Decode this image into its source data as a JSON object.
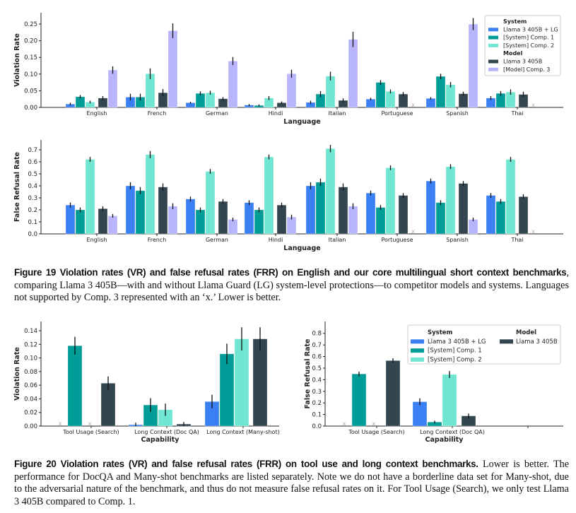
{
  "colors": {
    "llama_lg": "#3b80f3",
    "comp1": "#009c97",
    "comp2": "#70e6d2",
    "llama": "#33454f",
    "comp3": "#b9b5fc",
    "error_bar": "#111111",
    "missing_marker": "#aaaaaa"
  },
  "chart_data": [
    {
      "type": "bar",
      "id": "vr-language",
      "xlabel": "Language",
      "ylabel": "Violation Rate",
      "categories": [
        "English",
        "French",
        "German",
        "Hindi",
        "Italian",
        "Portuguese",
        "Spanish",
        "Thai"
      ],
      "ylim": [
        0,
        0.284
      ],
      "yticks": [
        "0.00",
        "0.05",
        "0.10",
        "0.15",
        "0.20",
        "0.25"
      ],
      "missing_marker": "x",
      "grid": false,
      "legend_position": "top-right",
      "legend": [
        {
          "header": "System"
        },
        {
          "series": 0
        },
        {
          "series": 1
        },
        {
          "series": 2
        },
        {
          "header": "Model"
        },
        {
          "series": 3
        },
        {
          "series": 4
        }
      ],
      "series": [
        {
          "name": "Llama 3 405B + LG",
          "color_key": "llama_lg",
          "values": [
            0.01,
            0.031,
            0.014,
            0.007,
            0.015,
            0.025,
            0.027,
            0.028
          ],
          "err": [
            0.004,
            0.01,
            0.003,
            0.003,
            0.005,
            0.004,
            0.004,
            0.006
          ]
        },
        {
          "name": "[System] Comp. 1",
          "color_key": "comp1",
          "values": [
            0.032,
            0.031,
            0.042,
            0.006,
            0.04,
            0.075,
            0.093,
            0.042
          ],
          "err": [
            0.005,
            0.01,
            0.006,
            0.003,
            0.009,
            0.007,
            0.008,
            0.007
          ]
        },
        {
          "name": "[System] Comp. 2",
          "color_key": "comp2",
          "values": [
            0.016,
            0.101,
            0.044,
            0.028,
            0.094,
            0.048,
            0.068,
            0.046
          ],
          "err": [
            0.004,
            0.016,
            0.006,
            0.006,
            0.013,
            0.006,
            0.008,
            0.008
          ]
        },
        {
          "name": "Llama 3 405B",
          "color_key": "llama",
          "values": [
            0.028,
            0.044,
            0.026,
            0.014,
            0.021,
            0.04,
            0.041,
            0.039
          ],
          "err": [
            0.006,
            0.011,
            0.005,
            0.004,
            0.006,
            0.006,
            0.006,
            0.008
          ]
        },
        {
          "name": "[Model] Comp. 3",
          "color_key": "comp3",
          "values": [
            0.112,
            0.23,
            0.139,
            0.101,
            0.204,
            "x",
            0.25,
            "x"
          ],
          "err": [
            0.011,
            0.022,
            0.012,
            0.012,
            0.023,
            null,
            0.018,
            null
          ]
        }
      ]
    },
    {
      "type": "bar",
      "id": "frr-language",
      "xlabel": "Language",
      "ylabel": "False Refusal Rate",
      "categories": [
        "English",
        "French",
        "German",
        "Hindi",
        "Italian",
        "Portuguese",
        "Spanish",
        "Thai"
      ],
      "ylim": [
        0,
        0.782
      ],
      "yticks": [
        "0.0",
        "0.1",
        "0.2",
        "0.3",
        "0.4",
        "0.5",
        "0.6",
        "0.7"
      ],
      "missing_marker": "x",
      "grid": false,
      "series": [
        {
          "name": "Llama 3 405B + LG",
          "color_key": "llama_lg",
          "values": [
            0.24,
            0.4,
            0.29,
            0.26,
            0.4,
            0.34,
            0.44,
            0.32
          ],
          "err": [
            0.02,
            0.03,
            0.02,
            0.02,
            0.03,
            0.02,
            0.02,
            0.02
          ]
        },
        {
          "name": "[System] Comp. 1",
          "color_key": "comp1",
          "values": [
            0.2,
            0.36,
            0.2,
            0.2,
            0.43,
            0.22,
            0.26,
            0.27
          ],
          "err": [
            0.02,
            0.03,
            0.02,
            0.02,
            0.03,
            0.02,
            0.02,
            0.02
          ]
        },
        {
          "name": "[System] Comp. 2",
          "color_key": "comp2",
          "values": [
            0.62,
            0.66,
            0.52,
            0.64,
            0.71,
            0.55,
            0.56,
            0.62
          ],
          "err": [
            0.02,
            0.03,
            0.02,
            0.02,
            0.03,
            0.02,
            0.02,
            0.02
          ]
        },
        {
          "name": "Llama 3 405B",
          "color_key": "llama",
          "values": [
            0.21,
            0.39,
            0.27,
            0.24,
            0.39,
            0.32,
            0.42,
            0.31
          ],
          "err": [
            0.02,
            0.03,
            0.02,
            0.02,
            0.03,
            0.02,
            0.02,
            0.02
          ]
        },
        {
          "name": "[Model] Comp. 3",
          "color_key": "comp3",
          "values": [
            0.15,
            0.23,
            0.12,
            0.14,
            0.23,
            "x",
            0.12,
            "x"
          ],
          "err": [
            0.015,
            0.025,
            0.015,
            0.02,
            0.025,
            null,
            0.015,
            null
          ]
        }
      ]
    },
    {
      "type": "bar",
      "id": "vr-capability",
      "xlabel": "Capability",
      "ylabel": "Violation Rate",
      "categories": [
        "Tool Usage (Search)",
        "Long Context (Doc QA)",
        "Long Context (Many-shot)"
      ],
      "ylim": [
        0,
        0.1535
      ],
      "yticks": [
        "0.00",
        "0.02",
        "0.04",
        "0.06",
        "0.08",
        "0.10",
        "0.12",
        "0.14"
      ],
      "missing_marker": "x",
      "grid": false,
      "series": [
        {
          "name": "Llama 3 405B + LG",
          "color_key": "llama_lg",
          "values": [
            "x",
            0.002,
            0.036
          ],
          "err": [
            null,
            0.003,
            0.01
          ]
        },
        {
          "name": "[System] Comp. 1",
          "color_key": "comp1",
          "values": [
            0.118,
            0.031,
            0.106
          ],
          "err": [
            0.013,
            0.01,
            0.015
          ]
        },
        {
          "name": "[System] Comp. 2",
          "color_key": "comp2",
          "values": [
            "x",
            0.024,
            0.128
          ],
          "err": [
            null,
            0.009,
            0.017
          ]
        },
        {
          "name": "Llama 3 405B",
          "color_key": "llama",
          "values": [
            0.063,
            0.003,
            0.128
          ],
          "err": [
            0.01,
            0.003,
            0.017
          ]
        }
      ]
    },
    {
      "type": "bar",
      "id": "frr-capability",
      "xlabel": "Capability",
      "ylabel": "False Refusal Rate",
      "categories": [
        "Tool Usage (Search)",
        "Long Context (Doc QA)",
        ""
      ],
      "ylim": [
        0,
        0.902
      ],
      "yticks": [
        "0.0",
        "0.1",
        "0.2",
        "0.3",
        "0.4",
        "0.5",
        "0.6",
        "0.7",
        "0.8"
      ],
      "missing_marker": "x",
      "grid": false,
      "legend_position": "top-right",
      "legend_columns": [
        [
          {
            "header": "System"
          },
          {
            "series": 0
          },
          {
            "series": 1
          },
          {
            "series": 2
          }
        ],
        [
          {
            "header": "Model"
          },
          {
            "series": 3
          }
        ]
      ],
      "series": [
        {
          "name": "Llama 3 405B + LG",
          "color_key": "llama_lg",
          "values": [
            "x",
            0.21,
            null
          ],
          "err": [
            null,
            0.03,
            null
          ]
        },
        {
          "name": "[System] Comp. 1",
          "color_key": "comp1",
          "values": [
            0.45,
            0.035,
            null
          ],
          "err": [
            0.02,
            0.012,
            null
          ]
        },
        {
          "name": "[System] Comp. 2",
          "color_key": "comp2",
          "values": [
            "x",
            0.445,
            null
          ],
          "err": [
            null,
            0.03,
            null
          ]
        },
        {
          "name": "Llama 3 405B",
          "color_key": "llama",
          "values": [
            0.565,
            0.088,
            null
          ],
          "err": [
            0.02,
            0.02,
            null
          ]
        }
      ]
    }
  ],
  "captions": {
    "fig19": {
      "label": "Figure 19  Violation rates (VR) and false refusal rates (FRR) on English and our core multilingual short context benchmarks",
      "text": ", comparing Llama 3 405B—with and without Llama Guard (LG) system-level protections—to competitor models and systems. Languages not supported by Comp. 3 represented with an ‘x.’ Lower is better."
    },
    "fig20": {
      "label": "Figure 20  Violation rates (VR) and false refusal rates (FRR) on tool use and long context benchmarks.",
      "text": " Lower is better. The performance for DocQA and Many-shot benchmarks are listed separately. Note we do not have a borderline data set for Many-shot, due to the adversarial nature of the benchmark, and thus do not measure false refusal rates on it. For Tool Usage (Search), we only test Llama 3 405B compared to Comp. 1."
    }
  }
}
